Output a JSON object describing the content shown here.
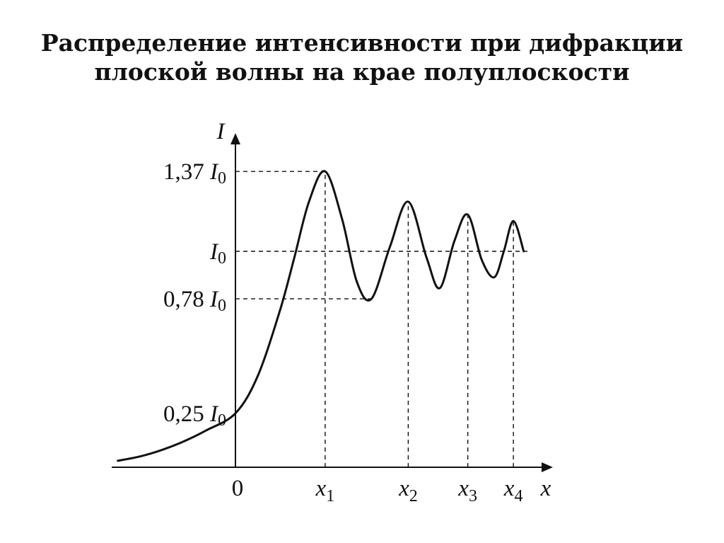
{
  "chart_data": {
    "type": "line",
    "title": [
      "Распределение интенсивности при дифракции",
      "плоской волны на крае полуплоскости"
    ],
    "xlabel": {
      "text": "x",
      "italic": true
    },
    "ylabel": {
      "text": "I",
      "italic": true
    },
    "origin_label": "0",
    "y_ticks": [
      {
        "value": 1.37,
        "coef": "1,37 ",
        "sym": "I",
        "sub": "0"
      },
      {
        "value": 1.0,
        "coef": "",
        "sym": "I",
        "sub": "0"
      },
      {
        "value": 0.78,
        "coef": "0,78 ",
        "sym": "I",
        "sub": "0"
      },
      {
        "value": 0.25,
        "coef": "0,25 ",
        "sym": "I",
        "sub": "0"
      }
    ],
    "x_ticks": [
      {
        "value": 1.22,
        "sym": "x",
        "sub": "1"
      },
      {
        "value": 2.35,
        "sym": "x",
        "sub": "2"
      },
      {
        "value": 3.16,
        "sym": "x",
        "sub": "3"
      },
      {
        "value": 3.78,
        "sym": "x",
        "sub": "4"
      }
    ],
    "xlim": [
      -1.6,
      4.4
    ],
    "ylim": [
      0,
      1.45
    ],
    "series": [
      {
        "points": [
          [
            -1.6,
            0.03
          ],
          [
            -1.3,
            0.05
          ],
          [
            -1.0,
            0.08
          ],
          [
            -0.7,
            0.12
          ],
          [
            -0.4,
            0.17
          ],
          [
            0.0,
            0.25
          ],
          [
            0.3,
            0.42
          ],
          [
            0.6,
            0.72
          ],
          [
            0.8,
            0.97
          ],
          [
            1.0,
            1.23
          ],
          [
            1.22,
            1.37
          ],
          [
            1.45,
            1.15
          ],
          [
            1.65,
            0.86
          ],
          [
            1.85,
            0.78
          ],
          [
            2.1,
            1.02
          ],
          [
            2.35,
            1.23
          ],
          [
            2.6,
            0.97
          ],
          [
            2.78,
            0.83
          ],
          [
            2.98,
            1.05
          ],
          [
            3.16,
            1.17
          ],
          [
            3.35,
            0.96
          ],
          [
            3.52,
            0.88
          ],
          [
            3.65,
            1.0
          ],
          [
            3.78,
            1.14
          ],
          [
            3.92,
            1.0
          ]
        ]
      }
    ]
  }
}
